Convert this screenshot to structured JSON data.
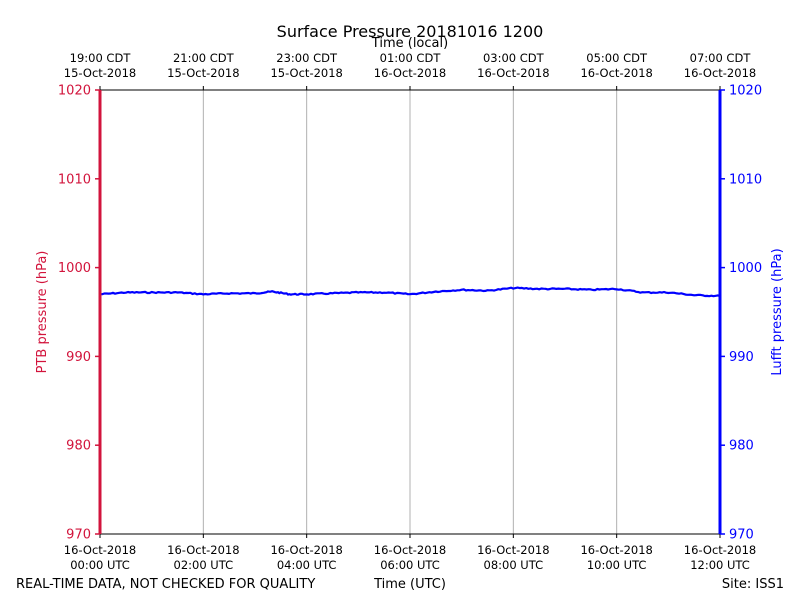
{
  "chart_data": {
    "type": "line",
    "title": "Surface Pressure 20181016 1200",
    "top_axis_label": "Time (local)",
    "xlabel": "Time (UTC)",
    "ylabel_left": "PTB pressure (hPa)",
    "ylabel_right": "Lufft pressure (hPa)",
    "ylim": [
      970,
      1020
    ],
    "yticks": [
      970,
      980,
      990,
      1000,
      1010,
      1020
    ],
    "xlim": [
      "2018-10-16 00:00",
      "2018-10-16 12:00"
    ],
    "x_ticks_utc": [
      {
        "line1": "16-Oct-2018",
        "line2": "00:00 UTC"
      },
      {
        "line1": "16-Oct-2018",
        "line2": "02:00 UTC"
      },
      {
        "line1": "16-Oct-2018",
        "line2": "04:00 UTC"
      },
      {
        "line1": "16-Oct-2018",
        "line2": "06:00 UTC"
      },
      {
        "line1": "16-Oct-2018",
        "line2": "08:00 UTC"
      },
      {
        "line1": "16-Oct-2018",
        "line2": "10:00 UTC"
      },
      {
        "line1": "16-Oct-2018",
        "line2": "12:00 UTC"
      }
    ],
    "x_ticks_local": [
      {
        "line1": "19:00 CDT",
        "line2": "15-Oct-2018"
      },
      {
        "line1": "21:00 CDT",
        "line2": "15-Oct-2018"
      },
      {
        "line1": "23:00 CDT",
        "line2": "15-Oct-2018"
      },
      {
        "line1": "01:00 CDT",
        "line2": "16-Oct-2018"
      },
      {
        "line1": "03:00 CDT",
        "line2": "16-Oct-2018"
      },
      {
        "line1": "05:00 CDT",
        "line2": "16-Oct-2018"
      },
      {
        "line1": "07:00 CDT",
        "line2": "16-Oct-2018"
      }
    ],
    "grid": true,
    "series": [
      {
        "color": "#0000ff",
        "x": [
          "2018-10-16 00:00",
          "2018-10-16 00:30",
          "2018-10-16 01:00",
          "2018-10-16 01:30",
          "2018-10-16 02:00",
          "2018-10-16 02:30",
          "2018-10-16 03:00",
          "2018-10-16 03:20",
          "2018-10-16 03:40",
          "2018-10-16 04:00",
          "2018-10-16 04:30",
          "2018-10-16 05:00",
          "2018-10-16 05:30",
          "2018-10-16 06:00",
          "2018-10-16 06:30",
          "2018-10-16 07:00",
          "2018-10-16 07:30",
          "2018-10-16 08:00",
          "2018-10-16 08:30",
          "2018-10-16 09:00",
          "2018-10-16 09:30",
          "2018-10-16 10:00",
          "2018-10-16 10:30",
          "2018-10-16 11:00",
          "2018-10-16 11:30",
          "2018-10-16 12:00"
        ],
        "values": [
          997.0,
          997.2,
          997.2,
          997.2,
          997.0,
          997.1,
          997.1,
          997.3,
          997.0,
          997.0,
          997.1,
          997.2,
          997.2,
          997.0,
          997.3,
          997.5,
          997.4,
          997.7,
          997.6,
          997.6,
          997.5,
          997.6,
          997.2,
          997.2,
          996.9,
          996.8
        ]
      }
    ],
    "left_axis_color": "#d2143c",
    "right_axis_color": "#0000ff"
  },
  "footer": {
    "left": "REAL-TIME DATA, NOT CHECKED FOR QUALITY",
    "right": "Site: ISS1"
  }
}
